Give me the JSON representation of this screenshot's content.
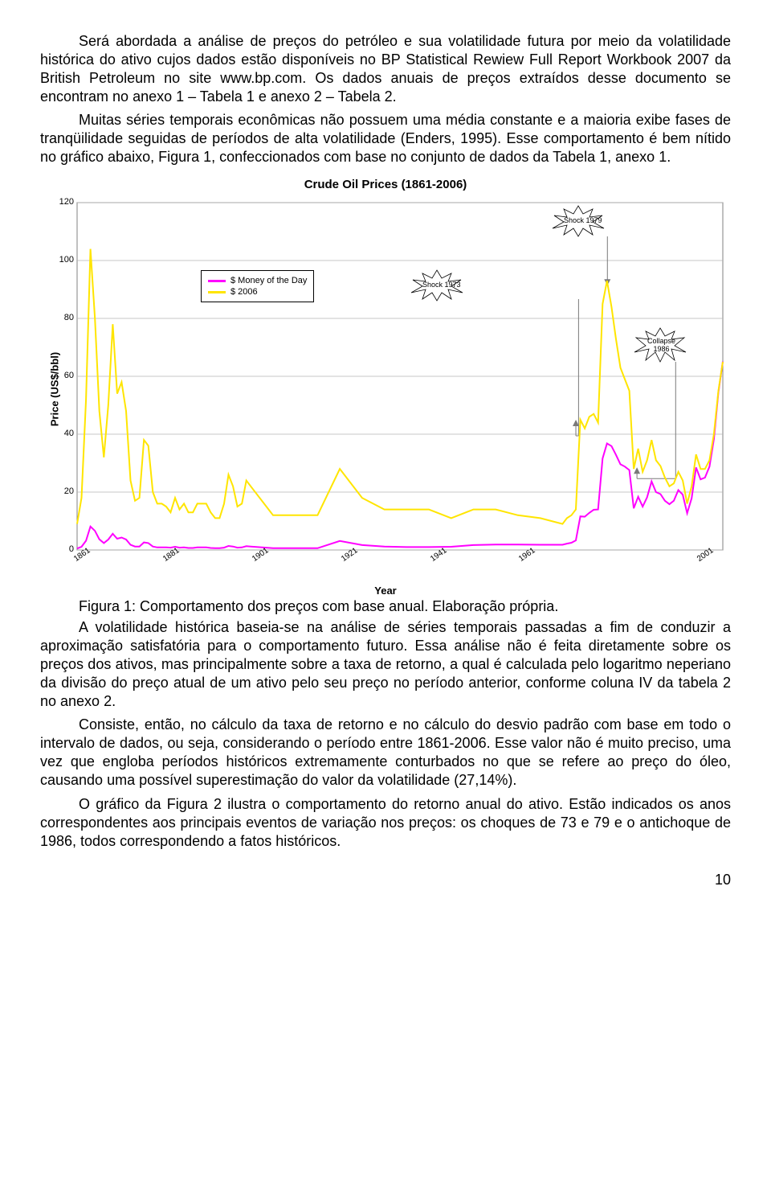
{
  "paragraph1": "Será abordada a análise de preços do petróleo e sua volatilidade futura por meio da volatilidade histórica do ativo cujos dados estão disponíveis no BP Statistical Rewiew Full Report Workbook 2007 da British Petroleum no site www.bp.com. Os dados anuais de preços extraídos desse documento se encontram no anexo 1 – Tabela 1 e anexo 2 – Tabela 2.",
  "paragraph2": "Muitas séries temporais econômicas não possuem uma média constante e a maioria exibe fases de tranqüilidade seguidas de períodos de alta volatilidade (Enders, 1995). Esse comportamento é bem nítido no gráfico abaixo, Figura 1, confeccionados com base no conjunto de dados da Tabela 1, anexo 1.",
  "chart": {
    "type": "line",
    "title": "Crude Oil Prices (1861-2006)",
    "ylabel": "Price (US$/bbl)",
    "xlabel": "Year",
    "title_fontsize": 15,
    "label_fontsize": 13,
    "background_color": "#ffffff",
    "grid_color": "#b5b5b5",
    "plot_border_color": "#808080",
    "ylim": [
      0,
      120
    ],
    "ytick_step": 20,
    "yticks": [
      0,
      20,
      40,
      60,
      80,
      100,
      120
    ],
    "xticks": [
      1861,
      1881,
      1901,
      1921,
      1941,
      1961,
      2001
    ],
    "line_width": 2,
    "legend": {
      "border_color": "#000000",
      "items": [
        {
          "label": "$ Money of the Day",
          "color": "#ff00ff"
        },
        {
          "label": "$ 2006",
          "color": "#ffe500"
        }
      ]
    },
    "annotations": {
      "shock1979": {
        "text": "Shock 1979"
      },
      "shock1973": {
        "text": "Shock 1973"
      },
      "collapse1986": {
        "line1": "Collapse",
        "line2": "1986"
      }
    },
    "series": [
      {
        "name": "Money of the Day",
        "color": "#ff00ff",
        "x": [
          1861,
          1862,
          1863,
          1864,
          1865,
          1866,
          1867,
          1868,
          1869,
          1870,
          1871,
          1872,
          1873,
          1874,
          1875,
          1876,
          1877,
          1878,
          1879,
          1880,
          1881,
          1882,
          1883,
          1884,
          1885,
          1886,
          1887,
          1888,
          1889,
          1890,
          1891,
          1892,
          1893,
          1894,
          1895,
          1896,
          1897,
          1898,
          1899,
          1900,
          1905,
          1910,
          1915,
          1920,
          1925,
          1930,
          1935,
          1940,
          1945,
          1950,
          1955,
          1960,
          1965,
          1970,
          1971,
          1972,
          1973,
          1974,
          1975,
          1976,
          1977,
          1978,
          1979,
          1980,
          1981,
          1982,
          1983,
          1984,
          1985,
          1986,
          1987,
          1988,
          1989,
          1990,
          1991,
          1992,
          1993,
          1994,
          1995,
          1996,
          1997,
          1998,
          1999,
          2000,
          2001,
          2002,
          2003,
          2004,
          2005,
          2006
        ],
        "y": [
          0.5,
          1.1,
          3.2,
          8.1,
          6.6,
          3.7,
          2.4,
          3.6,
          5.6,
          3.9,
          4.3,
          3.6,
          1.8,
          1.2,
          1.2,
          2.6,
          2.4,
          1.2,
          0.9,
          0.9,
          0.9,
          0.8,
          1.1,
          0.8,
          0.9,
          0.7,
          0.7,
          0.9,
          0.9,
          0.9,
          0.7,
          0.6,
          0.6,
          0.8,
          1.4,
          1.2,
          0.8,
          0.9,
          1.3,
          1.2,
          0.6,
          0.6,
          0.6,
          3.1,
          1.7,
          1.2,
          1.0,
          1.0,
          1.1,
          1.7,
          1.9,
          1.9,
          1.8,
          1.8,
          2.2,
          2.5,
          3.3,
          11.6,
          11.5,
          12.8,
          13.9,
          14.0,
          31.6,
          36.8,
          35.9,
          32.9,
          29.6,
          28.8,
          27.6,
          14.4,
          18.4,
          15.0,
          18.2,
          23.7,
          20.0,
          19.3,
          17.0,
          15.8,
          17.0,
          20.7,
          19.1,
          12.7,
          17.9,
          28.5,
          24.4,
          25.0,
          28.8,
          38.3,
          54.5,
          65.1
        ]
      },
      {
        "name": "$2006",
        "color": "#ffe500",
        "x": [
          1861,
          1862,
          1863,
          1864,
          1865,
          1866,
          1867,
          1868,
          1869,
          1870,
          1871,
          1872,
          1873,
          1874,
          1875,
          1876,
          1877,
          1878,
          1879,
          1880,
          1881,
          1882,
          1883,
          1884,
          1885,
          1886,
          1887,
          1888,
          1889,
          1890,
          1891,
          1892,
          1893,
          1894,
          1895,
          1896,
          1897,
          1898,
          1899,
          1900,
          1905,
          1910,
          1915,
          1920,
          1925,
          1930,
          1935,
          1940,
          1945,
          1950,
          1955,
          1960,
          1965,
          1970,
          1971,
          1972,
          1973,
          1974,
          1975,
          1976,
          1977,
          1978,
          1979,
          1980,
          1981,
          1982,
          1983,
          1984,
          1985,
          1986,
          1987,
          1988,
          1989,
          1990,
          1991,
          1992,
          1993,
          1994,
          1995,
          1996,
          1997,
          1998,
          1999,
          2000,
          2001,
          2002,
          2003,
          2004,
          2005,
          2006
        ],
        "y": [
          9,
          18,
          52,
          104,
          80,
          48,
          32,
          50,
          78,
          54,
          58,
          48,
          24,
          17,
          18,
          38,
          36,
          20,
          16,
          16,
          15,
          13,
          18,
          14,
          16,
          13,
          13,
          16,
          16,
          16,
          13,
          11,
          11,
          16,
          26,
          22,
          15,
          16,
          24,
          22,
          12,
          12,
          12,
          28,
          18,
          14,
          14,
          14,
          11,
          14,
          14,
          12,
          11,
          9,
          11,
          12,
          14,
          45,
          42,
          46,
          47,
          44,
          85,
          93,
          84,
          73,
          63,
          59,
          55,
          28,
          35,
          27,
          31,
          38,
          31,
          29,
          25,
          22,
          23,
          27,
          24,
          16,
          22,
          33,
          28,
          28,
          31,
          40,
          55,
          65
        ]
      }
    ]
  },
  "caption": "Figura 1: Comportamento dos preços com base anual. Elaboração própria.",
  "paragraph3": "A volatilidade histórica baseia-se na análise de séries temporais passadas a fim de conduzir a aproximação satisfatória para o comportamento futuro. Essa análise não é feita diretamente sobre os preços dos ativos, mas principalmente sobre a taxa de retorno, a qual é calculada pelo logaritmo neperiano da divisão do preço atual de um ativo pelo seu preço no período anterior, conforme coluna IV da tabela 2 no anexo 2.",
  "paragraph4": "Consiste, então, no cálculo da taxa de retorno e no cálculo do desvio padrão com base em todo o intervalo de dados, ou seja, considerando o período entre 1861-2006. Esse valor não é muito preciso, uma vez que engloba períodos históricos extremamente conturbados no que se refere ao preço do óleo, causando uma possível superestimação do valor da volatilidade (27,14%).",
  "paragraph5": "O gráfico da Figura 2 ilustra o comportamento do retorno anual do ativo. Estão indicados os anos correspondentes aos principais eventos de variação nos preços: os choques de 73 e 79 e o antichoque de 1986, todos correspondendo a fatos históricos.",
  "page_number": "10"
}
